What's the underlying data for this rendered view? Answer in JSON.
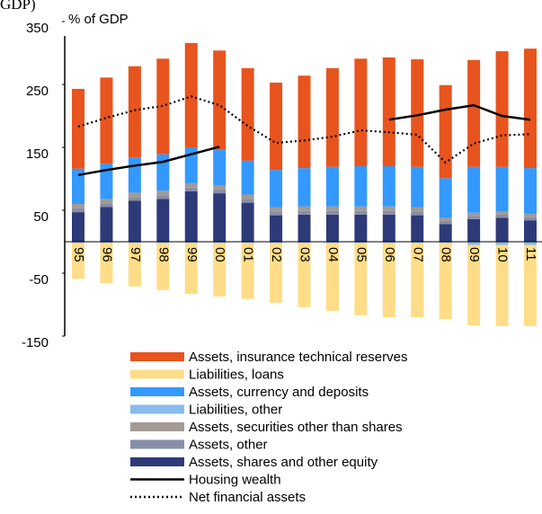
{
  "chart_data": {
    "type": "bar",
    "title": "GDP)",
    "y_label": "% of GDP",
    "stacked": true,
    "categories": [
      "95",
      "96",
      "97",
      "98",
      "99",
      "00",
      "01",
      "02",
      "03",
      "04",
      "05",
      "06",
      "07",
      "08",
      "09",
      "10",
      "11"
    ],
    "ylim": [
      -150,
      350
    ],
    "yticks": [
      350,
      250,
      150,
      50,
      -50,
      -150
    ],
    "series": [
      {
        "name": "Assets, insurance technical reserves",
        "color": "#e8541e",
        "values": [
          127,
          137,
          145,
          152,
          166,
          158,
          147,
          139,
          147,
          157,
          171,
          173,
          171,
          148,
          170,
          184,
          190
        ]
      },
      {
        "name": "Liabilities, loans",
        "color": "#ffdd88",
        "values": [
          -57,
          -64,
          -69,
          -75,
          -81,
          -85,
          -89,
          -95,
          -102,
          -108,
          -115,
          -118,
          -118,
          -121,
          -128,
          -129,
          -129
        ]
      },
      {
        "name": "Assets, currency and deposits",
        "color": "#3399ff",
        "values": [
          56,
          56,
          56,
          58,
          57,
          56,
          54,
          59,
          61,
          63,
          64,
          64,
          64,
          63,
          73,
          71,
          73
        ]
      },
      {
        "name": "Liabilities, other",
        "color": "#88bbee",
        "values": [
          -2,
          -2,
          -2,
          -2,
          -2,
          -2,
          -2,
          -2,
          -2,
          -2,
          -2,
          -2,
          -2,
          -2,
          -5,
          -5,
          -5
        ]
      },
      {
        "name": "Assets, securities other than shares",
        "color": "#a39a92",
        "values": [
          7,
          7,
          7,
          7,
          7,
          7,
          7,
          7,
          7,
          7,
          7,
          7,
          7,
          5,
          5,
          5,
          5
        ]
      },
      {
        "name": "Assets, other",
        "color": "#878ea8",
        "values": [
          6,
          6,
          6,
          6,
          6,
          6,
          6,
          6,
          6,
          6,
          6,
          6,
          6,
          5,
          5,
          5,
          5
        ]
      },
      {
        "name": "Assets, shares and other equity",
        "color": "#2e3a78",
        "values": [
          47,
          55,
          65,
          68,
          80,
          77,
          62,
          42,
          43,
          43,
          43,
          43,
          42,
          28,
          36,
          38,
          34
        ]
      },
      {
        "name": "Housing wealth",
        "type": "line",
        "style": "solid",
        "color": "#000000",
        "values": [
          106,
          114,
          121,
          127,
          139,
          151,
          null,
          null,
          null,
          null,
          null,
          194,
          201,
          210,
          217,
          200,
          194
        ]
      },
      {
        "name": "Net financial assets",
        "type": "line",
        "style": "dotted",
        "color": "#000000",
        "values": [
          183,
          197,
          209,
          216,
          231,
          217,
          184,
          157,
          161,
          167,
          177,
          174,
          170,
          126,
          156,
          169,
          171
        ]
      }
    ]
  }
}
